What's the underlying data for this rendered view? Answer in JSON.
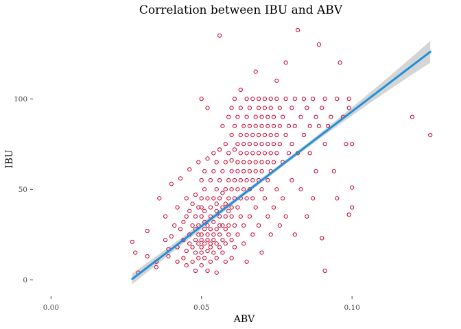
{
  "chart_data": {
    "type": "scatter",
    "title": "Correlation between IBU and ABV",
    "xlabel": "ABV",
    "ylabel": "IBU",
    "xlim": [
      -0.006,
      0.128
    ],
    "ylim": [
      -9,
      141
    ],
    "x_ticks": [
      {
        "value": 0.0,
        "label": "0.00"
      },
      {
        "value": 0.05,
        "label": "0.05"
      },
      {
        "value": 0.1,
        "label": "0.10"
      }
    ],
    "y_ticks": [
      {
        "value": 0,
        "label": "0"
      },
      {
        "value": 50,
        "label": "50"
      },
      {
        "value": 100,
        "label": "100"
      }
    ],
    "grid": false,
    "legend": "none",
    "colors": {
      "points": "#c8002a",
      "fit_line": "#1f8fdc",
      "confidence_band": "#b3b3b3"
    },
    "fit": {
      "method": "linear",
      "x": [
        0.027,
        0.126
      ],
      "y": [
        0.5,
        126
      ],
      "band_half_width_ends": [
        3,
        6
      ],
      "band_half_width_center": 1.2
    },
    "points": [
      [
        0.027,
        21
      ],
      [
        0.028,
        15
      ],
      [
        0.029,
        4
      ],
      [
        0.032,
        13
      ],
      [
        0.032,
        27
      ],
      [
        0.035,
        10
      ],
      [
        0.035,
        7
      ],
      [
        0.036,
        45
      ],
      [
        0.038,
        35
      ],
      [
        0.038,
        22
      ],
      [
        0.039,
        17
      ],
      [
        0.039,
        13
      ],
      [
        0.04,
        53
      ],
      [
        0.04,
        24
      ],
      [
        0.041,
        30
      ],
      [
        0.042,
        10
      ],
      [
        0.042,
        40
      ],
      [
        0.042,
        18
      ],
      [
        0.043,
        56
      ],
      [
        0.043,
        28
      ],
      [
        0.044,
        32
      ],
      [
        0.044,
        12
      ],
      [
        0.044,
        22
      ],
      [
        0.045,
        35
      ],
      [
        0.045,
        8
      ],
      [
        0.045,
        45
      ],
      [
        0.045,
        16
      ],
      [
        0.046,
        38
      ],
      [
        0.046,
        25
      ],
      [
        0.046,
        20
      ],
      [
        0.046,
        61
      ],
      [
        0.047,
        10
      ],
      [
        0.047,
        30
      ],
      [
        0.047,
        18
      ],
      [
        0.047,
        42
      ],
      [
        0.048,
        5
      ],
      [
        0.048,
        22
      ],
      [
        0.048,
        35
      ],
      [
        0.048,
        28
      ],
      [
        0.048,
        15
      ],
      [
        0.048,
        47
      ],
      [
        0.049,
        40
      ],
      [
        0.049,
        20
      ],
      [
        0.049,
        12
      ],
      [
        0.049,
        25
      ],
      [
        0.049,
        30
      ],
      [
        0.049,
        65
      ],
      [
        0.05,
        100
      ],
      [
        0.05,
        18
      ],
      [
        0.05,
        22
      ],
      [
        0.05,
        25
      ],
      [
        0.05,
        35
      ],
      [
        0.05,
        45
      ],
      [
        0.05,
        8
      ],
      [
        0.05,
        15
      ],
      [
        0.05,
        55
      ],
      [
        0.05,
        40
      ],
      [
        0.051,
        28
      ],
      [
        0.051,
        20
      ],
      [
        0.051,
        32
      ],
      [
        0.051,
        12
      ],
      [
        0.051,
        50
      ],
      [
        0.051,
        60
      ],
      [
        0.051,
        38
      ],
      [
        0.052,
        16
      ],
      [
        0.052,
        25
      ],
      [
        0.052,
        22
      ],
      [
        0.052,
        30
      ],
      [
        0.052,
        45
      ],
      [
        0.052,
        5
      ],
      [
        0.052,
        95
      ],
      [
        0.052,
        67
      ],
      [
        0.053,
        20
      ],
      [
        0.053,
        35
      ],
      [
        0.053,
        28
      ],
      [
        0.053,
        40
      ],
      [
        0.053,
        18
      ],
      [
        0.053,
        55
      ],
      [
        0.053,
        10
      ],
      [
        0.054,
        45
      ],
      [
        0.054,
        25
      ],
      [
        0.054,
        32
      ],
      [
        0.054,
        22
      ],
      [
        0.054,
        60
      ],
      [
        0.054,
        15
      ],
      [
        0.054,
        70
      ],
      [
        0.055,
        38
      ],
      [
        0.055,
        28
      ],
      [
        0.055,
        50
      ],
      [
        0.055,
        20
      ],
      [
        0.055,
        4
      ],
      [
        0.055,
        42
      ],
      [
        0.055,
        65
      ],
      [
        0.055,
        12
      ],
      [
        0.056,
        30
      ],
      [
        0.056,
        45
      ],
      [
        0.056,
        25
      ],
      [
        0.056,
        55
      ],
      [
        0.056,
        35
      ],
      [
        0.056,
        18
      ],
      [
        0.056,
        72
      ],
      [
        0.056,
        135
      ],
      [
        0.057,
        40
      ],
      [
        0.057,
        60
      ],
      [
        0.057,
        22
      ],
      [
        0.057,
        30
      ],
      [
        0.057,
        48
      ],
      [
        0.057,
        15
      ],
      [
        0.057,
        85
      ],
      [
        0.058,
        50
      ],
      [
        0.058,
        35
      ],
      [
        0.058,
        28
      ],
      [
        0.058,
        65
      ],
      [
        0.058,
        20
      ],
      [
        0.058,
        75
      ],
      [
        0.058,
        42
      ],
      [
        0.058,
        10
      ],
      [
        0.059,
        55
      ],
      [
        0.059,
        38
      ],
      [
        0.059,
        70
      ],
      [
        0.059,
        25
      ],
      [
        0.059,
        45
      ],
      [
        0.059,
        90
      ],
      [
        0.059,
        30
      ],
      [
        0.06,
        60
      ],
      [
        0.06,
        40
      ],
      [
        0.06,
        80
      ],
      [
        0.06,
        50
      ],
      [
        0.06,
        22
      ],
      [
        0.06,
        95
      ],
      [
        0.06,
        35
      ],
      [
        0.06,
        66
      ],
      [
        0.06,
        12
      ],
      [
        0.061,
        72
      ],
      [
        0.061,
        45
      ],
      [
        0.061,
        55
      ],
      [
        0.061,
        30
      ],
      [
        0.061,
        85
      ],
      [
        0.061,
        100
      ],
      [
        0.061,
        18
      ],
      [
        0.062,
        65
      ],
      [
        0.062,
        50
      ],
      [
        0.062,
        75
      ],
      [
        0.062,
        40
      ],
      [
        0.062,
        90
      ],
      [
        0.062,
        25
      ],
      [
        0.062,
        60
      ],
      [
        0.063,
        70
      ],
      [
        0.063,
        55
      ],
      [
        0.063,
        80
      ],
      [
        0.063,
        45
      ],
      [
        0.063,
        35
      ],
      [
        0.063,
        105
      ],
      [
        0.063,
        95
      ],
      [
        0.064,
        65
      ],
      [
        0.064,
        75
      ],
      [
        0.064,
        50
      ],
      [
        0.064,
        85
      ],
      [
        0.064,
        60
      ],
      [
        0.064,
        20
      ],
      [
        0.064,
        30
      ],
      [
        0.065,
        70
      ],
      [
        0.065,
        80
      ],
      [
        0.065,
        55
      ],
      [
        0.065,
        100
      ],
      [
        0.065,
        45
      ],
      [
        0.065,
        90
      ],
      [
        0.065,
        10
      ],
      [
        0.066,
        75
      ],
      [
        0.066,
        65
      ],
      [
        0.066,
        85
      ],
      [
        0.066,
        60
      ],
      [
        0.066,
        95
      ],
      [
        0.066,
        35
      ],
      [
        0.066,
        50
      ],
      [
        0.067,
        70
      ],
      [
        0.067,
        80
      ],
      [
        0.067,
        55
      ],
      [
        0.067,
        100
      ],
      [
        0.067,
        45
      ],
      [
        0.067,
        25
      ],
      [
        0.068,
        75
      ],
      [
        0.068,
        90
      ],
      [
        0.068,
        65
      ],
      [
        0.068,
        60
      ],
      [
        0.068,
        85
      ],
      [
        0.068,
        40
      ],
      [
        0.068,
        115
      ],
      [
        0.069,
        70
      ],
      [
        0.069,
        80
      ],
      [
        0.069,
        100
      ],
      [
        0.069,
        55
      ],
      [
        0.069,
        95
      ],
      [
        0.069,
        30
      ],
      [
        0.07,
        75
      ],
      [
        0.07,
        85
      ],
      [
        0.07,
        65
      ],
      [
        0.07,
        60
      ],
      [
        0.07,
        90
      ],
      [
        0.07,
        50
      ],
      [
        0.07,
        15
      ],
      [
        0.071,
        80
      ],
      [
        0.071,
        70
      ],
      [
        0.071,
        100
      ],
      [
        0.071,
        95
      ],
      [
        0.071,
        45
      ],
      [
        0.072,
        85
      ],
      [
        0.072,
        75
      ],
      [
        0.072,
        65
      ],
      [
        0.072,
        90
      ],
      [
        0.072,
        55
      ],
      [
        0.072,
        35
      ],
      [
        0.073,
        80
      ],
      [
        0.073,
        100
      ],
      [
        0.073,
        70
      ],
      [
        0.073,
        95
      ],
      [
        0.073,
        60
      ],
      [
        0.073,
        25
      ],
      [
        0.074,
        85
      ],
      [
        0.074,
        90
      ],
      [
        0.074,
        75
      ],
      [
        0.074,
        65
      ],
      [
        0.074,
        40
      ],
      [
        0.075,
        100
      ],
      [
        0.075,
        80
      ],
      [
        0.075,
        70
      ],
      [
        0.075,
        50
      ],
      [
        0.075,
        110
      ],
      [
        0.076,
        85
      ],
      [
        0.076,
        95
      ],
      [
        0.076,
        75
      ],
      [
        0.076,
        30
      ],
      [
        0.077,
        90
      ],
      [
        0.077,
        65
      ],
      [
        0.077,
        45
      ],
      [
        0.078,
        120
      ],
      [
        0.078,
        100
      ],
      [
        0.078,
        80
      ],
      [
        0.078,
        35
      ],
      [
        0.079,
        85
      ],
      [
        0.079,
        70
      ],
      [
        0.08,
        95
      ],
      [
        0.08,
        75
      ],
      [
        0.08,
        55
      ],
      [
        0.081,
        85
      ],
      [
        0.081,
        100
      ],
      [
        0.081,
        25
      ],
      [
        0.082,
        138
      ],
      [
        0.082,
        70
      ],
      [
        0.083,
        90
      ],
      [
        0.083,
        50
      ],
      [
        0.084,
        100
      ],
      [
        0.084,
        80
      ],
      [
        0.085,
        95
      ],
      [
        0.085,
        35
      ],
      [
        0.086,
        85
      ],
      [
        0.086,
        70
      ],
      [
        0.087,
        100
      ],
      [
        0.087,
        45
      ],
      [
        0.088,
        90
      ],
      [
        0.088,
        60
      ],
      [
        0.089,
        130
      ],
      [
        0.089,
        85
      ],
      [
        0.09,
        95
      ],
      [
        0.09,
        23
      ],
      [
        0.091,
        100
      ],
      [
        0.091,
        75
      ],
      [
        0.091,
        5
      ],
      [
        0.092,
        85
      ],
      [
        0.093,
        90
      ],
      [
        0.094,
        60
      ],
      [
        0.095,
        100
      ],
      [
        0.095,
        45
      ],
      [
        0.096,
        120
      ],
      [
        0.097,
        90
      ],
      [
        0.098,
        75
      ],
      [
        0.099,
        100
      ],
      [
        0.099,
        95
      ],
      [
        0.099,
        36
      ],
      [
        0.1,
        51
      ],
      [
        0.1,
        75
      ],
      [
        0.1,
        40
      ],
      [
        0.12,
        90
      ],
      [
        0.126,
        80
      ]
    ]
  }
}
